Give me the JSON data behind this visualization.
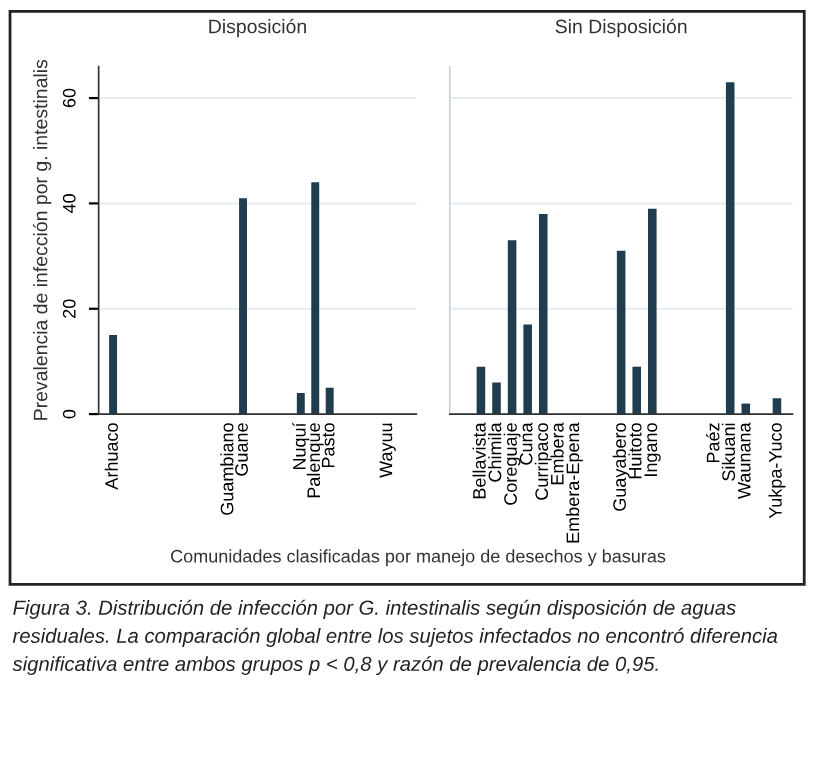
{
  "chart_data": [
    {
      "type": "bar",
      "title": "Disposición",
      "ylabel": "Prevalencia de infección por g. intestinalis",
      "xlabel": "Comunidades clasificadas por manejo de desechos y basuras",
      "annotations": [
        "Figura 3. Distribución de infección por G. intestinalis según disposición de aguas residuales. La comparación global entre los sujetos infectados no encontró diferencia significativa entre ambos grupos p < 0,8 y razón de prevalencia de 0,95."
      ],
      "categories": [
        "Arhuaco",
        null,
        null,
        null,
        null,
        null,
        null,
        null,
        "Guambiano",
        "Guane",
        null,
        null,
        null,
        "Nuquí",
        "Palenque",
        "Pasto",
        null,
        null,
        null,
        "Wayuu",
        null
      ],
      "values": [
        15,
        null,
        null,
        null,
        null,
        null,
        null,
        null,
        0,
        41,
        null,
        null,
        null,
        4,
        44,
        5,
        null,
        null,
        null,
        0,
        null
      ],
      "color": "#1f3d4f",
      "ylim": [
        0,
        66
      ],
      "yticks": [
        0,
        20,
        40,
        60
      ],
      "grid": "y"
    },
    {
      "type": "bar",
      "title": "Sin Disposición",
      "categories": [
        null,
        "Bellavista",
        "Chimila",
        "Coreguaje",
        "Cuna",
        "Curripaco",
        "Embera",
        "Embera-Epena",
        null,
        null,
        "Guayabero",
        "Huitoto",
        "Ingano",
        null,
        null,
        null,
        "Paéz",
        "Sikuani",
        "Waunana",
        null,
        "Yukpa-Yuco"
      ],
      "values": [
        null,
        9,
        6,
        33,
        17,
        38,
        0,
        0,
        null,
        null,
        31,
        9,
        39,
        null,
        null,
        null,
        0,
        63,
        2,
        null,
        3
      ],
      "color": "#1f3d4f",
      "ylim": [
        0,
        66
      ],
      "yticks": [
        0,
        20,
        40,
        60
      ],
      "grid": "y",
      "tick_labels": "x"
    }
  ]
}
